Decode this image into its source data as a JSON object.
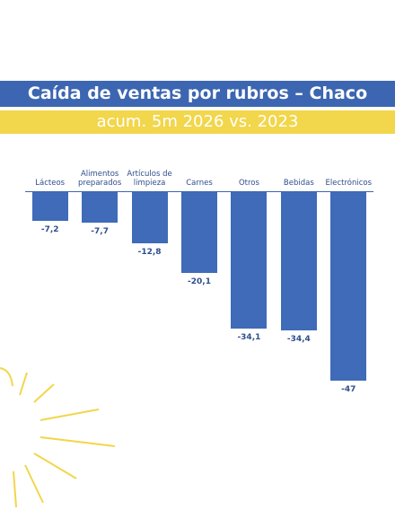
{
  "chart_data": {
    "type": "bar",
    "title": "Caída de ventas por rubros – Chaco",
    "subtitle": "acum. 5m 2026 vs. 2023",
    "categories": [
      "Lácteos",
      "Alimentos preparados",
      "Artículos de limpieza",
      "Carnes",
      "Otros",
      "Bebidas",
      "Electrónicos"
    ],
    "values": [
      -7.2,
      -7.7,
      -12.8,
      -20.1,
      -34.1,
      -34.4,
      -47
    ],
    "value_labels": [
      "-7,2",
      "-7,7",
      "-12,8",
      "-20,1",
      "-34,1",
      "-34,4",
      "-47"
    ],
    "color": "#3f6bb8"
  }
}
